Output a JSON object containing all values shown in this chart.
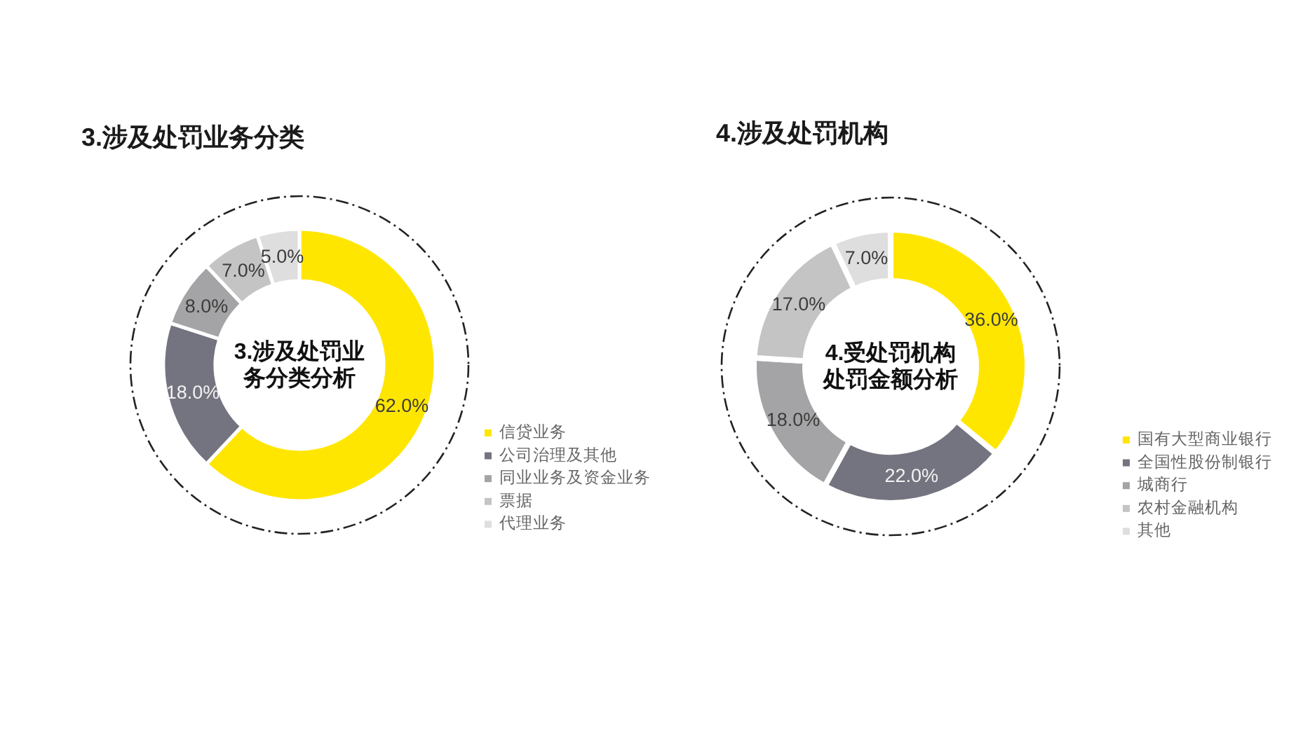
{
  "chart_data": [
    {
      "type": "donut",
      "title": "3.涉及处罚业务分类",
      "categories": [
        "信贷业务",
        "公司治理及其他",
        "同业业务及资金业务",
        "票据",
        "代理业务"
      ],
      "values": [
        62,
        18,
        8,
        7,
        5
      ],
      "colors": [
        "#ffe600",
        "#747480",
        "#a4a4a6",
        "#c4c4c4",
        "#dedede"
      ],
      "value_labels": [
        "62.0%",
        "18.0%",
        "8.0%",
        "7.0%",
        "5.0%"
      ],
      "annotations": [
        "3.涉及处罚业务分类分析"
      ],
      "legend": "bottom right"
    },
    {
      "type": "donut",
      "title": "4.涉及处罚机构",
      "categories": [
        "国有大型商业银行",
        "全国性股份制银行",
        "城商行",
        "农村金融机构",
        "其他"
      ],
      "values": [
        36,
        22,
        18,
        17,
        7
      ],
      "colors": [
        "#ffe600",
        "#747480",
        "#a4a4a6",
        "#c4c4c4",
        "#dedede"
      ],
      "value_labels": [
        "36.0%",
        "22.0%",
        "18.0%",
        "17.0%",
        "7.0%"
      ],
      "annotations": [
        "4.受处罚机构处罚金额分析"
      ],
      "legend": "bottom right"
    }
  ]
}
